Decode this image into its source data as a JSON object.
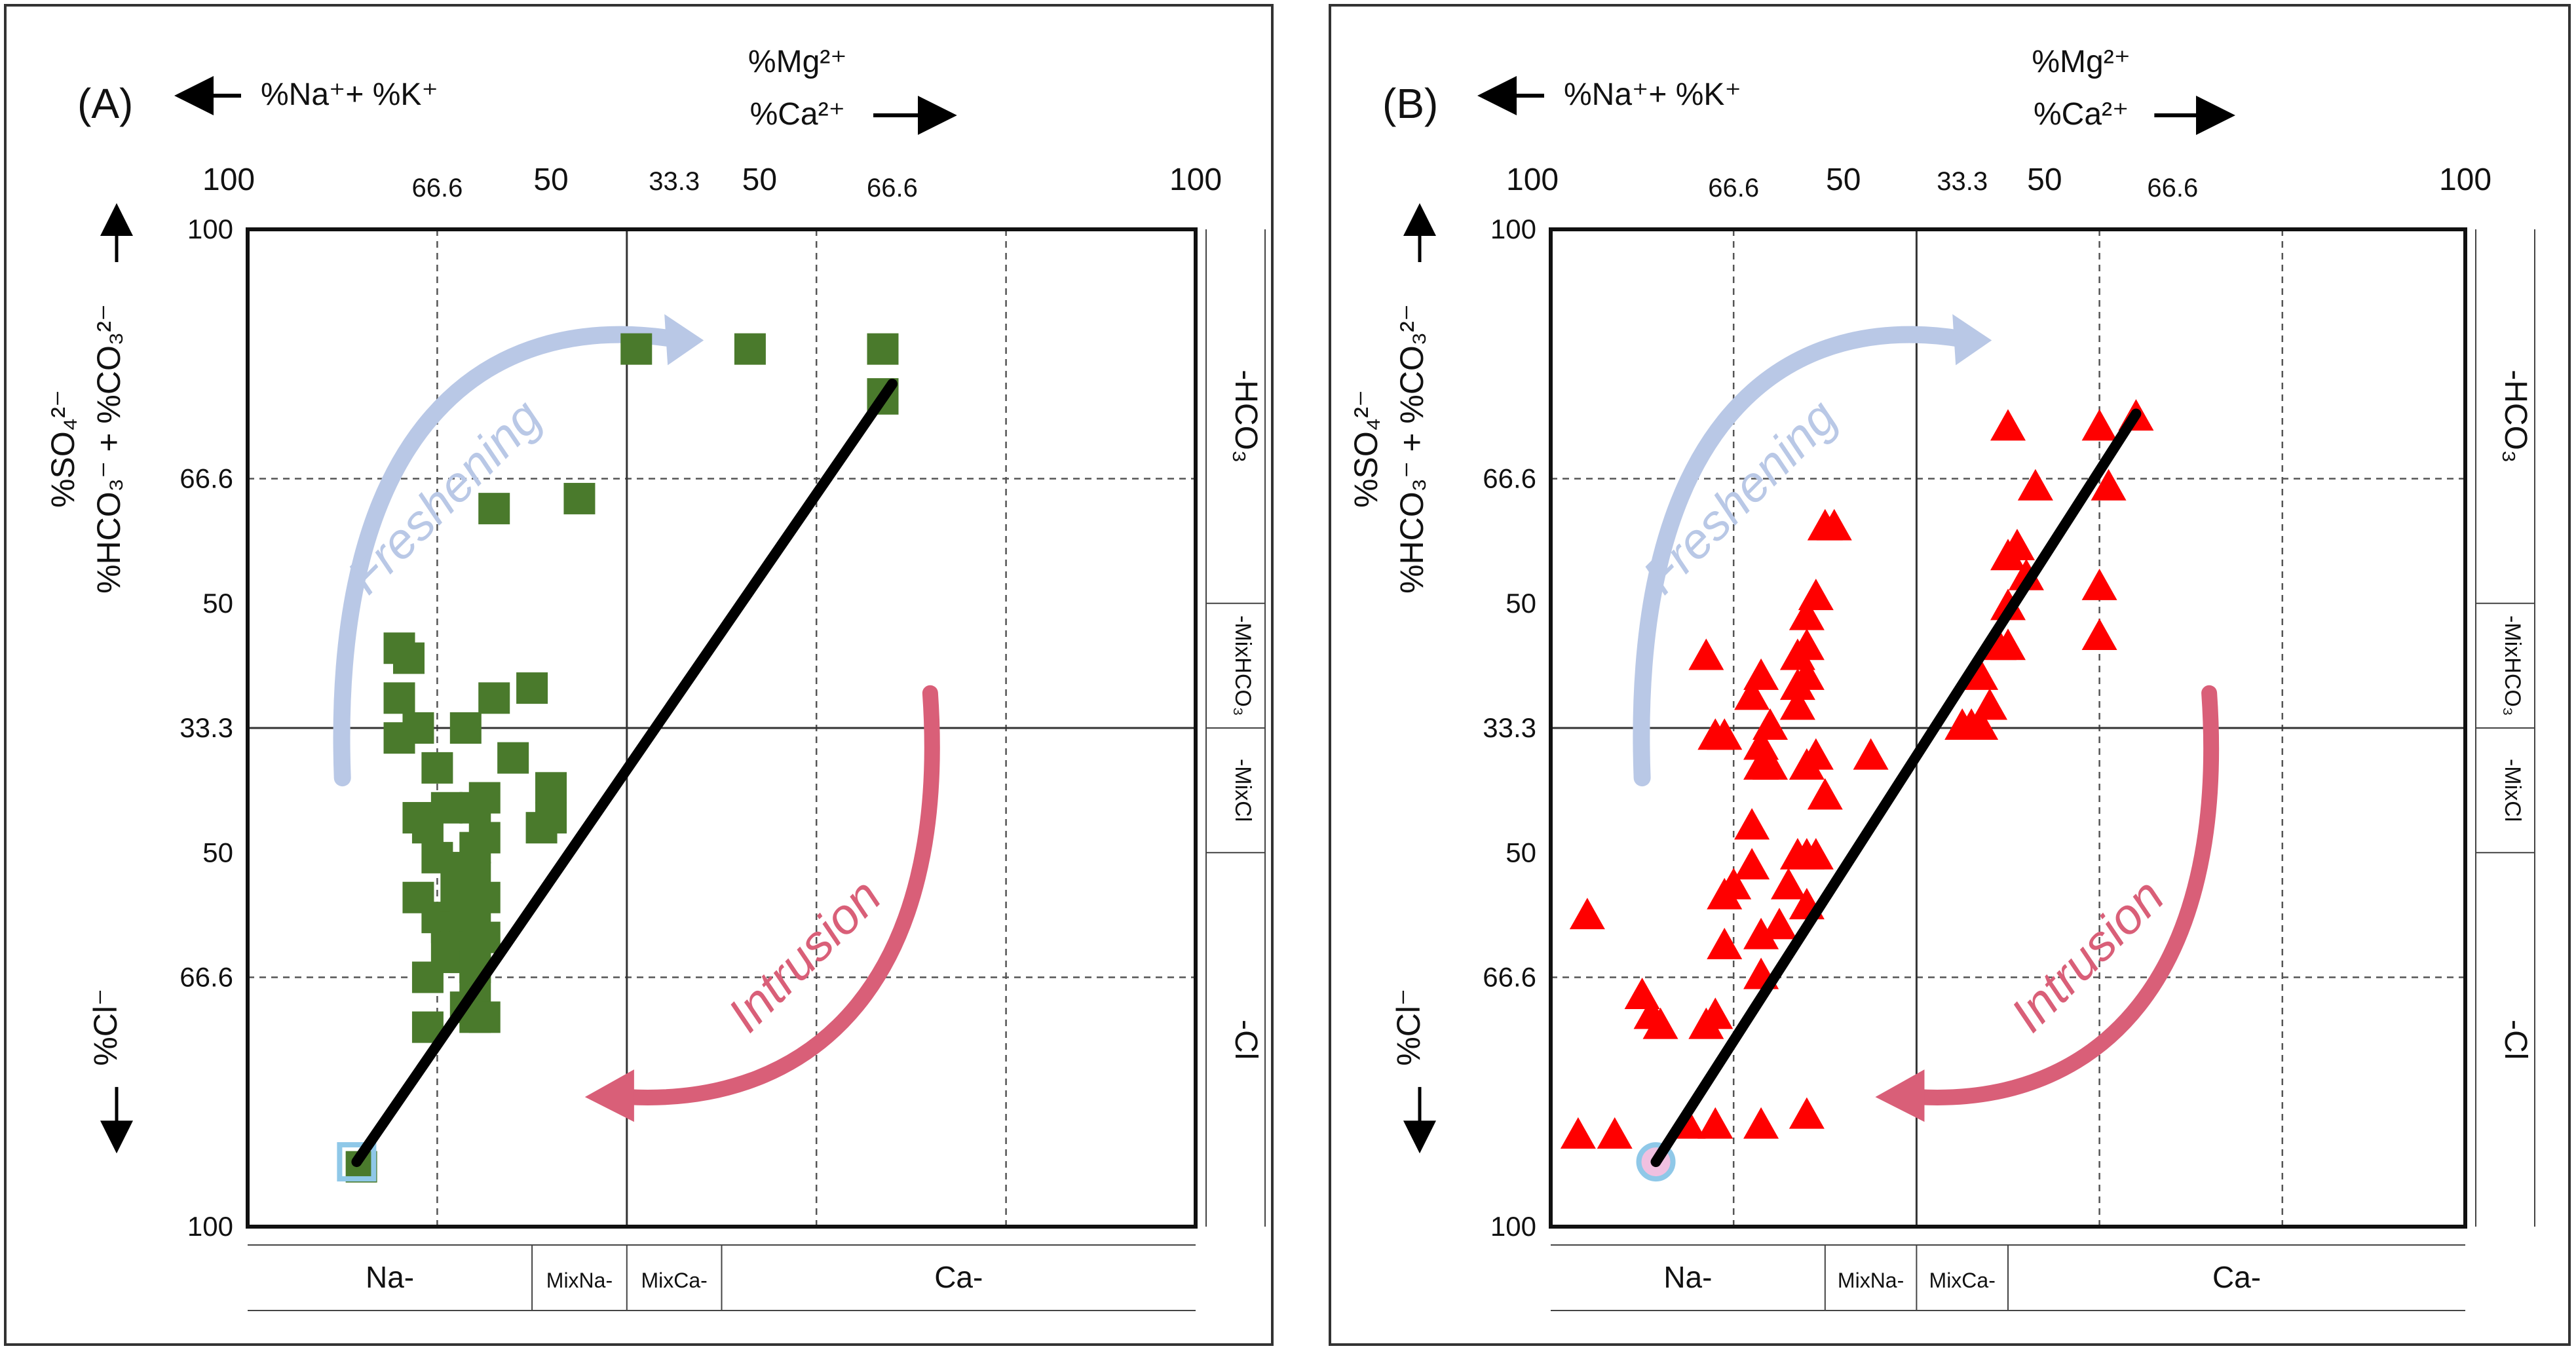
{
  "figure": {
    "colors": {
      "frame": "#222222",
      "grid": "#555555",
      "trend": "#000000",
      "freshening": "#b9c8e6",
      "intrusion": "#d95f78"
    }
  },
  "panel_common": {
    "x_left_label": "%Na⁺+ %K⁺",
    "x_right_label_top": "%Mg²⁺",
    "x_right_label_bottom": "%Ca²⁺",
    "top_ticks": [
      "100",
      "66.6",
      "50",
      "33.3",
      "50",
      "66.6",
      "100"
    ],
    "left_ticks": [
      "100",
      "66.6",
      "50",
      "33.3",
      "50",
      "66.6",
      "100"
    ],
    "y_label_upper": "%SO₄²⁻",
    "y_label_lower": "%HCO₃⁻ + %CO₃²⁻",
    "y_label_cl": "%Cl⁻",
    "right_bands": [
      "-HCO₃",
      "-MixHCO₃",
      "-MixCl",
      "-Cl"
    ],
    "bottom_bands": [
      "Na-",
      "MixNa-",
      "MixCa-",
      "Ca-"
    ],
    "freshening_label": "Freshening",
    "intrusion_label": "Intrusion"
  },
  "chart_data": [
    {
      "type": "scatter",
      "panel_label": "(A)",
      "marker": "square",
      "marker_color": "#4a7a2c",
      "x_axis": "Cation position: Na+K (left, 0) to Ca+Mg (right, 100)",
      "y_axis": "Anion position: Cl (bottom, 0) to HCO3+SO4 (top, 100)",
      "xlim": [
        0,
        100
      ],
      "ylim": [
        0,
        100
      ],
      "points": [
        {
          "x": 12,
          "y": 6
        },
        {
          "x": 41,
          "y": 88
        },
        {
          "x": 53,
          "y": 88
        },
        {
          "x": 67,
          "y": 88
        },
        {
          "x": 67,
          "y": 83
        },
        {
          "x": 67,
          "y": 83.5
        },
        {
          "x": 26,
          "y": 72
        },
        {
          "x": 35,
          "y": 73
        },
        {
          "x": 16,
          "y": 58
        },
        {
          "x": 17,
          "y": 57
        },
        {
          "x": 16,
          "y": 53
        },
        {
          "x": 18,
          "y": 50
        },
        {
          "x": 16,
          "y": 49
        },
        {
          "x": 26,
          "y": 53
        },
        {
          "x": 30,
          "y": 54
        },
        {
          "x": 23,
          "y": 50
        },
        {
          "x": 20,
          "y": 46
        },
        {
          "x": 28,
          "y": 47
        },
        {
          "x": 32,
          "y": 44
        },
        {
          "x": 18,
          "y": 41
        },
        {
          "x": 19,
          "y": 40
        },
        {
          "x": 21,
          "y": 42
        },
        {
          "x": 24,
          "y": 42
        },
        {
          "x": 25,
          "y": 43
        },
        {
          "x": 25,
          "y": 39
        },
        {
          "x": 20,
          "y": 37
        },
        {
          "x": 31,
          "y": 40
        },
        {
          "x": 32,
          "y": 41
        },
        {
          "x": 24,
          "y": 38
        },
        {
          "x": 23,
          "y": 36
        },
        {
          "x": 22,
          "y": 34
        },
        {
          "x": 23,
          "y": 33
        },
        {
          "x": 24,
          "y": 35
        },
        {
          "x": 18,
          "y": 33
        },
        {
          "x": 20,
          "y": 31
        },
        {
          "x": 21,
          "y": 30
        },
        {
          "x": 22,
          "y": 30
        },
        {
          "x": 23,
          "y": 31
        },
        {
          "x": 24,
          "y": 32
        },
        {
          "x": 25,
          "y": 33
        },
        {
          "x": 21,
          "y": 28
        },
        {
          "x": 22,
          "y": 27
        },
        {
          "x": 23,
          "y": 27
        },
        {
          "x": 24,
          "y": 28
        },
        {
          "x": 25,
          "y": 29
        },
        {
          "x": 24,
          "y": 26
        },
        {
          "x": 19,
          "y": 25
        },
        {
          "x": 24,
          "y": 24
        },
        {
          "x": 24,
          "y": 21
        },
        {
          "x": 25,
          "y": 21
        },
        {
          "x": 19,
          "y": 20
        },
        {
          "x": 23,
          "y": 22
        }
      ],
      "trend_line": {
        "from": [
          11.5,
          6.5
        ],
        "to": [
          68,
          84.5
        ]
      },
      "origin_marker_color": "#8fc8e8"
    },
    {
      "type": "scatter",
      "panel_label": "(B)",
      "marker": "triangle",
      "marker_color": "#ff0000",
      "x_axis": "Cation position: Na+K (left, 0) to Ca+Mg (right, 100)",
      "y_axis": "Anion position: Cl (bottom, 0) to HCO3+SO4 (top, 100)",
      "xlim": [
        0,
        100
      ],
      "ylim": [
        0,
        100
      ],
      "points": [
        {
          "x": 3,
          "y": 9
        },
        {
          "x": 7,
          "y": 9
        },
        {
          "x": 4,
          "y": 31
        },
        {
          "x": 10,
          "y": 23
        },
        {
          "x": 11,
          "y": 21
        },
        {
          "x": 12,
          "y": 20
        },
        {
          "x": 15,
          "y": 10
        },
        {
          "x": 17,
          "y": 20
        },
        {
          "x": 18,
          "y": 21
        },
        {
          "x": 17,
          "y": 57
        },
        {
          "x": 18,
          "y": 49
        },
        {
          "x": 19,
          "y": 49
        },
        {
          "x": 19,
          "y": 33
        },
        {
          "x": 20,
          "y": 34
        },
        {
          "x": 19,
          "y": 28
        },
        {
          "x": 18,
          "y": 10
        },
        {
          "x": 23,
          "y": 10
        },
        {
          "x": 28,
          "y": 11
        },
        {
          "x": 23,
          "y": 25
        },
        {
          "x": 23,
          "y": 29
        },
        {
          "x": 25,
          "y": 30
        },
        {
          "x": 22,
          "y": 40
        },
        {
          "x": 22,
          "y": 36
        },
        {
          "x": 23,
          "y": 46
        },
        {
          "x": 24,
          "y": 46
        },
        {
          "x": 23,
          "y": 48
        },
        {
          "x": 24,
          "y": 50
        },
        {
          "x": 22,
          "y": 53
        },
        {
          "x": 23,
          "y": 55
        },
        {
          "x": 27,
          "y": 52
        },
        {
          "x": 27,
          "y": 54
        },
        {
          "x": 28,
          "y": 55
        },
        {
          "x": 27,
          "y": 57
        },
        {
          "x": 28,
          "y": 58
        },
        {
          "x": 28,
          "y": 61
        },
        {
          "x": 26,
          "y": 34
        },
        {
          "x": 28,
          "y": 46
        },
        {
          "x": 27,
          "y": 37
        },
        {
          "x": 28,
          "y": 37
        },
        {
          "x": 28,
          "y": 32
        },
        {
          "x": 29,
          "y": 37
        },
        {
          "x": 30,
          "y": 43
        },
        {
          "x": 29,
          "y": 47
        },
        {
          "x": 29,
          "y": 63
        },
        {
          "x": 30,
          "y": 70
        },
        {
          "x": 31,
          "y": 70
        },
        {
          "x": 35,
          "y": 47
        },
        {
          "x": 45,
          "y": 50
        },
        {
          "x": 46,
          "y": 50
        },
        {
          "x": 47,
          "y": 50
        },
        {
          "x": 47,
          "y": 55
        },
        {
          "x": 48,
          "y": 52
        },
        {
          "x": 49,
          "y": 58
        },
        {
          "x": 50,
          "y": 62
        },
        {
          "x": 50,
          "y": 67
        },
        {
          "x": 51,
          "y": 68
        },
        {
          "x": 52,
          "y": 65
        },
        {
          "x": 50,
          "y": 80
        },
        {
          "x": 53,
          "y": 74
        },
        {
          "x": 60,
          "y": 80
        },
        {
          "x": 60,
          "y": 64
        },
        {
          "x": 60,
          "y": 59
        },
        {
          "x": 61,
          "y": 74
        },
        {
          "x": 64,
          "y": 81
        },
        {
          "x": 50,
          "y": 58
        }
      ],
      "trend_line": {
        "from": [
          11.5,
          6.5
        ],
        "to": [
          64,
          81.5
        ]
      },
      "origin_marker_color": "#8fc8e8"
    }
  ]
}
